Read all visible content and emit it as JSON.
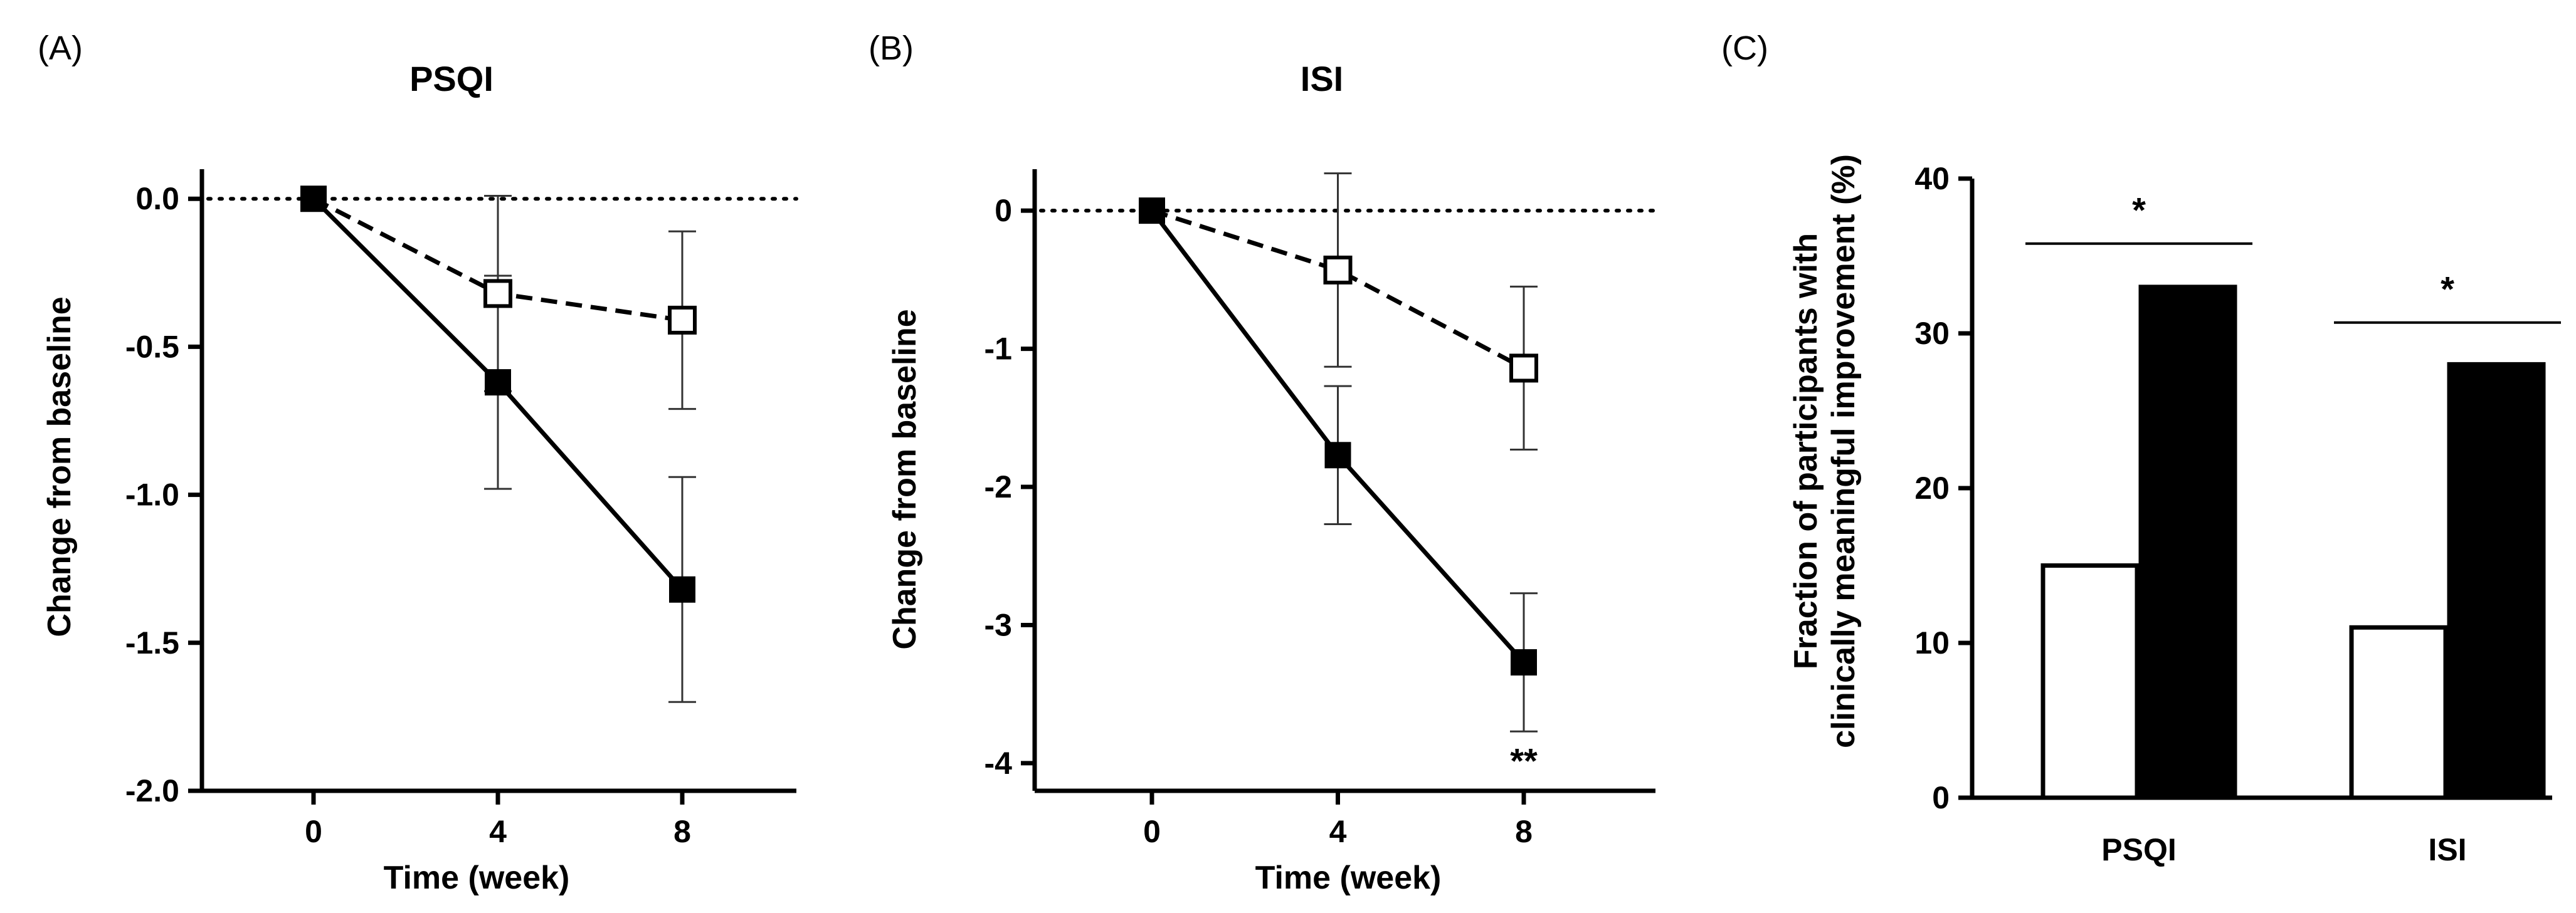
{
  "chart_data": [
    {
      "panel": "(A)",
      "type": "line",
      "title": "PSQI",
      "xlabel": "Time (week)",
      "ylabel": "Change from baseline",
      "x": [
        0,
        4,
        8
      ],
      "xticks": [
        "0",
        "4",
        "8"
      ],
      "yticks": [
        "0.0",
        "-0.5",
        "-1.0",
        "-1.5",
        "-2.0"
      ],
      "ylim": [
        -2.0,
        0.1
      ],
      "reference_line": 0,
      "series": [
        {
          "name": "open-square (dashed)",
          "marker": "open-square",
          "values": [
            0,
            -0.32,
            -0.41
          ],
          "error": [
            0,
            0.33,
            0.3
          ]
        },
        {
          "name": "filled-square (solid)",
          "marker": "filled-square",
          "values": [
            0,
            -0.62,
            -1.32
          ],
          "error": [
            0,
            0.36,
            0.38
          ]
        }
      ],
      "annotations": []
    },
    {
      "panel": "(B)",
      "type": "line",
      "title": "ISI",
      "xlabel": "Time (week)",
      "ylabel": "Change from baseline",
      "x": [
        0,
        4,
        8
      ],
      "xticks": [
        "0",
        "4",
        "8"
      ],
      "yticks": [
        "0",
        "-1",
        "-2",
        "-3",
        "-4"
      ],
      "ylim": [
        -4.2,
        0.3
      ],
      "reference_line": 0,
      "series": [
        {
          "name": "open-square (dashed)",
          "marker": "open-square",
          "values": [
            0,
            -0.43,
            -1.14
          ],
          "error": [
            0,
            0.7,
            0.59
          ]
        },
        {
          "name": "filled-square (solid)",
          "marker": "filled-square",
          "values": [
            0,
            -1.77,
            -3.27
          ],
          "error": [
            0,
            0.5,
            0.5
          ]
        }
      ],
      "annotations": [
        {
          "text": "**",
          "x": 8,
          "y": -3.98
        }
      ]
    },
    {
      "panel": "(C)",
      "type": "bar",
      "title": "",
      "xlabel": "",
      "ylabel_lines": [
        "Fraction of participants with",
        "clinically meaningful improvement (%)"
      ],
      "categories": [
        "PSQI",
        "ISI"
      ],
      "yticks": [
        "0",
        "10",
        "20",
        "30",
        "40"
      ],
      "ylim": [
        0,
        40
      ],
      "series": [
        {
          "name": "open bar",
          "fill": "#ffffff",
          "values": [
            15,
            11
          ]
        },
        {
          "name": "filled bar",
          "fill": "#000000",
          "values": [
            33,
            28
          ]
        }
      ],
      "significance": [
        {
          "category": "PSQI",
          "text": "*",
          "y": 35.8
        },
        {
          "category": "ISI",
          "text": "*",
          "y": 30.7
        }
      ]
    }
  ]
}
